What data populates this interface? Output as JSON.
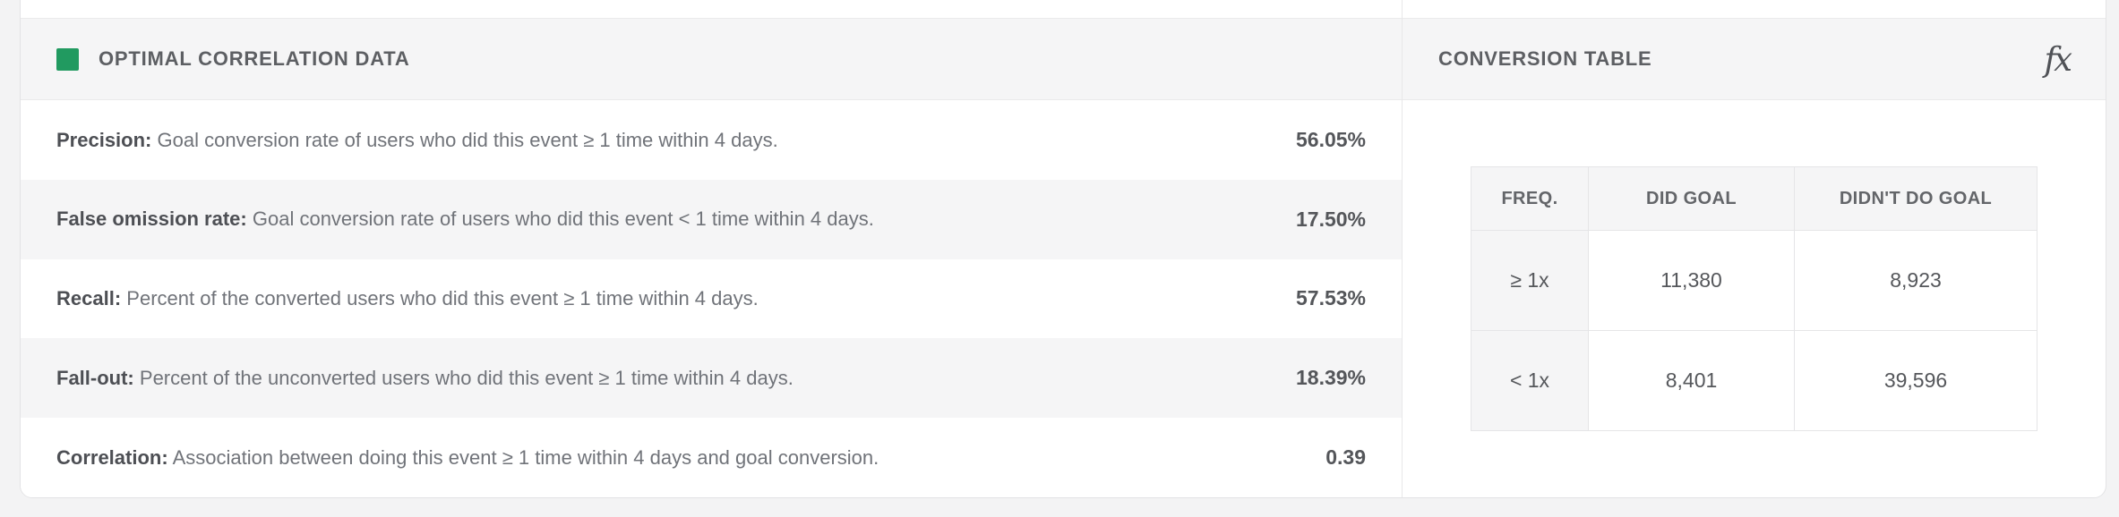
{
  "colors": {
    "page_background": "#f3f3f4",
    "band_background": "#f5f5f6",
    "legend_green": "#219a60"
  },
  "panels": {
    "correlation": {
      "title": "OPTIMAL CORRELATION DATA",
      "rows": [
        {
          "label": "Precision:",
          "description": "Goal conversion rate of users who did this event ≥ 1 time within 4 days.",
          "value": "56.05%"
        },
        {
          "label": "False omission rate:",
          "description": "Goal conversion rate of users who did this event < 1 time within 4 days.",
          "value": "17.50%"
        },
        {
          "label": "Recall:",
          "description": "Percent of the converted users who did this event ≥ 1 time within 4 days.",
          "value": "57.53%"
        },
        {
          "label": "Fall-out:",
          "description": "Percent of the unconverted users who did this event ≥ 1 time within 4 days.",
          "value": "18.39%"
        },
        {
          "label": "Correlation:",
          "description": "Association between doing this event ≥ 1 time within 4 days and goal conversion.",
          "value": "0.39"
        }
      ]
    },
    "conversion": {
      "title": "CONVERSION TABLE",
      "fx_label": "fx",
      "table": {
        "headers": [
          "FREQ.",
          "DID GOAL",
          "DIDN'T DO GOAL"
        ],
        "rows": [
          {
            "freq": "≥ 1x",
            "did_goal": "11,380",
            "didnt_do_goal": "8,923"
          },
          {
            "freq": "< 1x",
            "did_goal": "8,401",
            "didnt_do_goal": "39,596"
          }
        ]
      }
    }
  }
}
